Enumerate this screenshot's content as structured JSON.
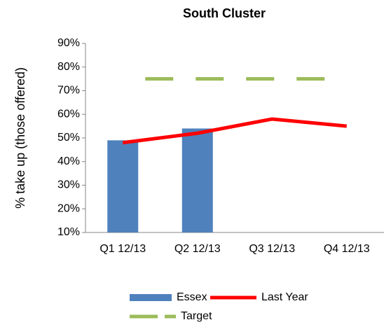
{
  "chart_data": {
    "type": "bar",
    "title": "South Cluster",
    "y_label": "% take up (those offered)",
    "categories": [
      "Q1 12/13",
      "Q2 12/13",
      "Q3 12/13",
      "Q4 12/13"
    ],
    "series": [
      {
        "name": "Essex",
        "type": "bar",
        "color": "#4f81bd",
        "values": [
          49,
          54,
          null,
          null
        ]
      },
      {
        "name": "Last Year",
        "type": "line",
        "color": "#ff0000",
        "values": [
          48,
          52,
          58,
          55
        ]
      },
      {
        "name": "Target",
        "type": "line",
        "line_style": "dashed",
        "color": "#9bbb59",
        "values": [
          75,
          75,
          75,
          75
        ]
      }
    ],
    "ylim": [
      10,
      90
    ],
    "yticks": [
      {
        "value": 10,
        "label": "10%"
      },
      {
        "value": 20,
        "label": "20%"
      },
      {
        "value": 30,
        "label": "30%"
      },
      {
        "value": 40,
        "label": "40%"
      },
      {
        "value": 50,
        "label": "50%"
      },
      {
        "value": 60,
        "label": "60%"
      },
      {
        "value": 70,
        "label": "70%"
      },
      {
        "value": 80,
        "label": "80%"
      },
      {
        "value": 90,
        "label": "90%"
      }
    ],
    "grid": false
  }
}
